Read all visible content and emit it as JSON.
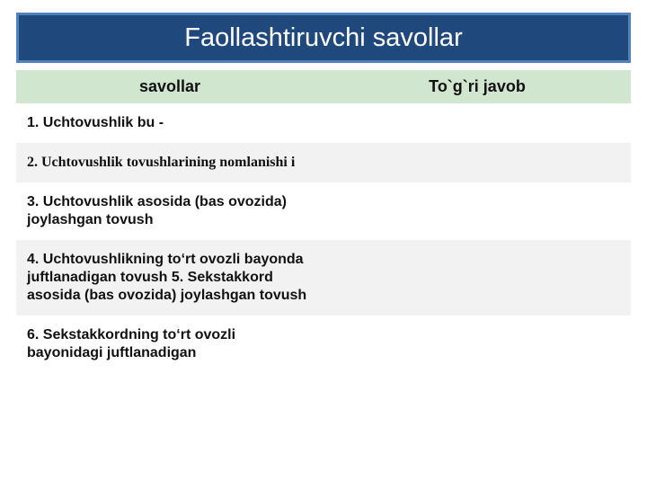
{
  "title": "Faollashtiruvchi savollar",
  "table": {
    "background_header": "#d1e6cf",
    "alt_row_bg": "#f2f2f2",
    "columns": [
      {
        "label": "savollar"
      },
      {
        "label": "To`g`ri javob"
      }
    ],
    "rows": [
      {
        "left": "1. Uchtovushlik bu -",
        "right": "",
        "alt": false
      },
      {
        "left": "2. Uchtovushlik tovushlarining nomlanishi і",
        "right": "",
        "alt": true,
        "serif": true
      },
      {
        "left": "3. Uchtovushlik asosida (bas ovozida) joylashgan tovush",
        "right": "",
        "alt": false
      },
      {
        "left": "4. Uchtovushlikning to‘rt ovozli bayonda juftlanadigan tovush\n5. Sekstakkord asosida (bas ovozida) joylashgan tovush",
        "right": "",
        "alt": true
      },
      {
        "left": "6. Sekstakkordning to‘rt ovozli bayonidagi juftlanadigan",
        "right": "",
        "alt": false
      }
    ]
  }
}
